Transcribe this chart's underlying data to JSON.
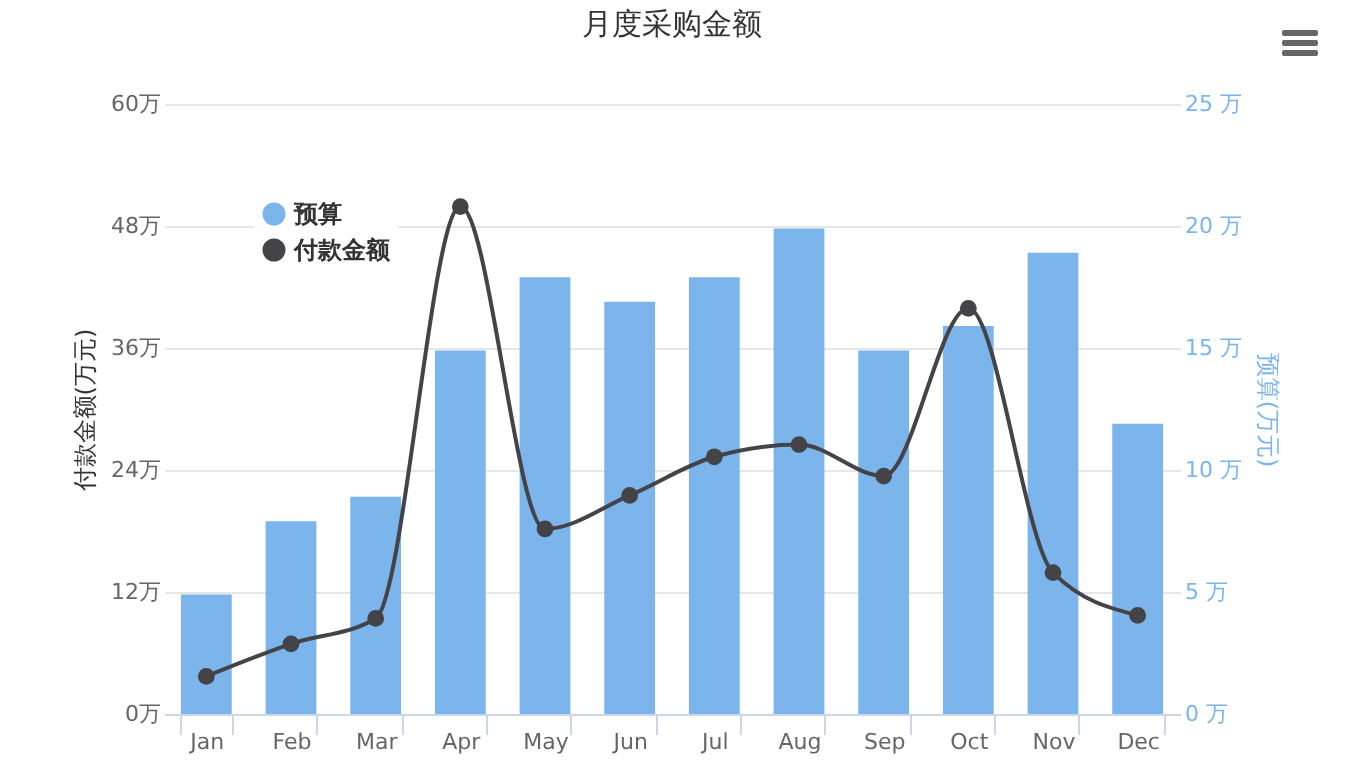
{
  "chart_data": {
    "type": "bar",
    "title": "月度采购金额",
    "ylabel": "付款金额(万元)",
    "y2label": "预算(万元)",
    "categories": [
      "Jan",
      "Feb",
      "Mar",
      "Apr",
      "May",
      "Jun",
      "Jul",
      "Aug",
      "Sep",
      "Oct",
      "Nov",
      "Dec"
    ],
    "series": [
      {
        "name": "预算",
        "axis": "y2",
        "color": "#7cb5ec",
        "values": [
          4.9,
          7.9,
          8.9,
          14.9,
          17.9,
          16.9,
          17.9,
          19.9,
          14.9,
          15.9,
          18.9,
          11.9
        ]
      },
      {
        "name": "付款金额",
        "type": "line",
        "color": "#434348",
        "values": [
          3.7,
          6.9,
          9.4,
          49.9,
          18.2,
          21.5,
          25.3,
          26.5,
          23.4,
          39.9,
          13.9,
          9.7
        ]
      }
    ],
    "ylim": [
      0,
      60
    ],
    "yticks": [
      {
        "value": 0,
        "label": "0万"
      },
      {
        "value": 12,
        "label": "12万"
      },
      {
        "value": 24,
        "label": "24万"
      },
      {
        "value": 36,
        "label": "36万"
      },
      {
        "value": 48,
        "label": "48万"
      },
      {
        "value": 60,
        "label": "60万"
      }
    ],
    "y2lim": [
      0,
      25
    ],
    "y2ticks": [
      {
        "value": 0,
        "label": "0 万"
      },
      {
        "value": 5,
        "label": "5 万"
      },
      {
        "value": 10,
        "label": "10 万"
      },
      {
        "value": 15,
        "label": "15 万"
      },
      {
        "value": 20,
        "label": "20 万"
      },
      {
        "value": 25,
        "label": "25 万"
      }
    ],
    "grid": "y",
    "legend": "top left",
    "marker": "circle"
  }
}
